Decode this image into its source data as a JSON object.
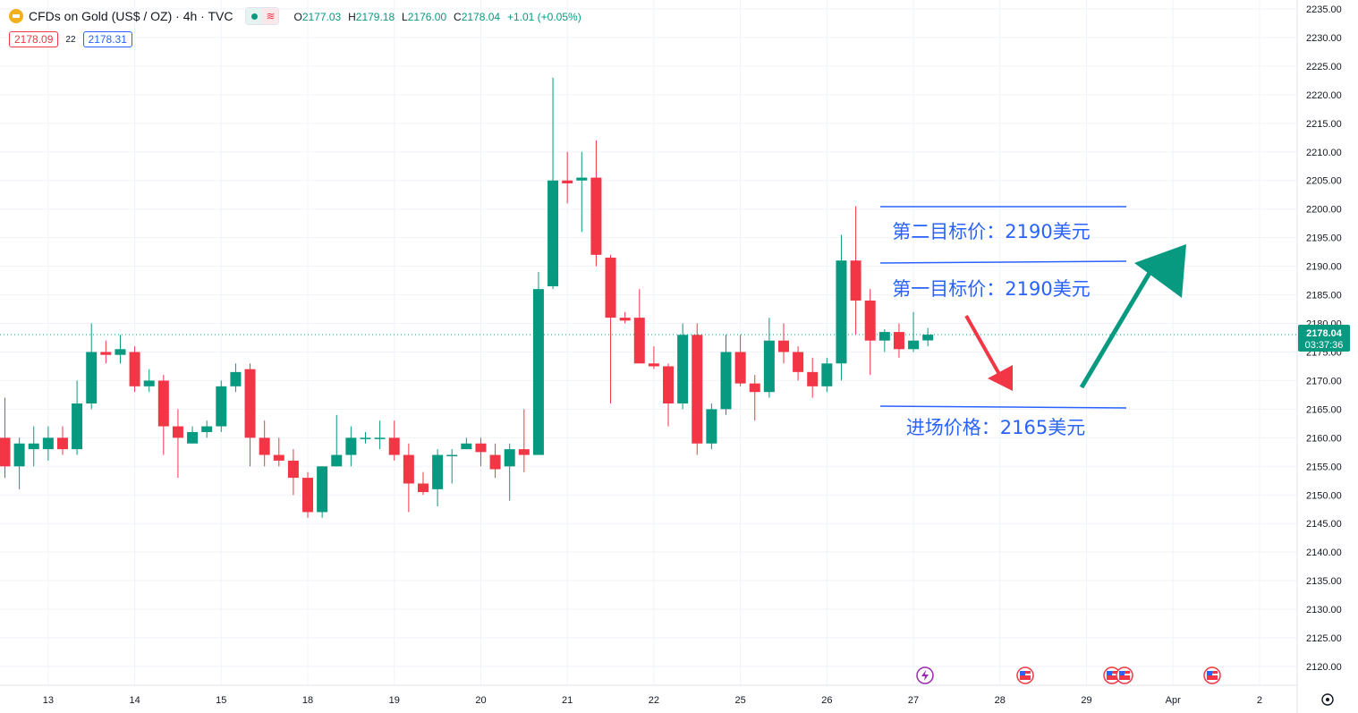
{
  "header": {
    "symbol_title": "CFDs on Gold (US$ / OZ) · 4h · TVC",
    "ohlc": {
      "o_label": "O",
      "o_value": "2177.03",
      "h_label": "H",
      "h_value": "2179.18",
      "l_label": "L",
      "l_value": "2176.00",
      "c_label": "C",
      "c_value": "2178.04",
      "change": "+1.01 (+0.05%)"
    },
    "bid": "2178.09",
    "spread": "22",
    "ask": "2178.31"
  },
  "price_label": {
    "price": "2178.04",
    "countdown": "03:37:36"
  },
  "annotations": {
    "target2": "第二目标价：2190美元",
    "target1": "第一目标价：2190美元",
    "entry": "进场价格：2165美元"
  },
  "colors": {
    "up": "#089981",
    "down": "#f23645",
    "annotation_text": "#2962ff",
    "line": "#2962ff"
  },
  "icons": {
    "symbol": "gold-coin-icon",
    "settings": "gear-icon",
    "event_lightning": "lightning-icon",
    "event_flag": "us-flag-icon"
  },
  "chart_data": {
    "type": "candlestick",
    "title": "CFDs on Gold (US$ / OZ) · 4h · TVC",
    "ylim": [
      2117,
      2237
    ],
    "y_ticks": [
      2120,
      2125,
      2130,
      2135,
      2140,
      2145,
      2150,
      2155,
      2160,
      2165,
      2170,
      2175,
      2180,
      2185,
      2190,
      2195,
      2200,
      2205,
      2210,
      2215,
      2220,
      2225,
      2230,
      2235
    ],
    "x_ticks": [
      {
        "label": "13",
        "bar": 3
      },
      {
        "label": "14",
        "bar": 9
      },
      {
        "label": "15",
        "bar": 15
      },
      {
        "label": "18",
        "bar": 21
      },
      {
        "label": "19",
        "bar": 27
      },
      {
        "label": "20",
        "bar": 33
      },
      {
        "label": "21",
        "bar": 39
      },
      {
        "label": "22",
        "bar": 45
      },
      {
        "label": "25",
        "bar": 51
      },
      {
        "label": "26",
        "bar": 57
      },
      {
        "label": "27",
        "bar": 63
      },
      {
        "label": "28",
        "bar": 69
      },
      {
        "label": "29",
        "bar": 75
      },
      {
        "label": "Apr",
        "bar": 81
      },
      {
        "label": "2",
        "bar": 87
      }
    ],
    "last_price": 2178.04,
    "candles": [
      {
        "o": 2160,
        "h": 2167,
        "l": 2153,
        "c": 2155
      },
      {
        "o": 2155,
        "h": 2160,
        "l": 2151,
        "c": 2159
      },
      {
        "o": 2158,
        "h": 2162,
        "l": 2155,
        "c": 2159
      },
      {
        "o": 2158,
        "h": 2162,
        "l": 2156,
        "c": 2160
      },
      {
        "o": 2160,
        "h": 2162,
        "l": 2157,
        "c": 2158
      },
      {
        "o": 2158,
        "h": 2170,
        "l": 2157,
        "c": 2166
      },
      {
        "o": 2166,
        "h": 2180,
        "l": 2165,
        "c": 2175
      },
      {
        "o": 2175,
        "h": 2177,
        "l": 2173,
        "c": 2174.5
      },
      {
        "o": 2174.5,
        "h": 2178,
        "l": 2173,
        "c": 2175.5
      },
      {
        "o": 2175,
        "h": 2176,
        "l": 2168,
        "c": 2169
      },
      {
        "o": 2169,
        "h": 2172,
        "l": 2168,
        "c": 2170
      },
      {
        "o": 2170,
        "h": 2171,
        "l": 2157,
        "c": 2162
      },
      {
        "o": 2162,
        "h": 2165,
        "l": 2153,
        "c": 2160
      },
      {
        "o": 2159,
        "h": 2162,
        "l": 2159,
        "c": 2161
      },
      {
        "o": 2161,
        "h": 2163,
        "l": 2160,
        "c": 2162
      },
      {
        "o": 2162,
        "h": 2170,
        "l": 2161,
        "c": 2169
      },
      {
        "o": 2169,
        "h": 2173,
        "l": 2168,
        "c": 2171.5
      },
      {
        "o": 2172,
        "h": 2173,
        "l": 2155,
        "c": 2160
      },
      {
        "o": 2160,
        "h": 2163,
        "l": 2155,
        "c": 2157
      },
      {
        "o": 2157,
        "h": 2160,
        "l": 2155,
        "c": 2156
      },
      {
        "o": 2156,
        "h": 2158,
        "l": 2150,
        "c": 2153
      },
      {
        "o": 2153,
        "h": 2154,
        "l": 2146,
        "c": 2147
      },
      {
        "o": 2147,
        "h": 2155,
        "l": 2146,
        "c": 2155
      },
      {
        "o": 2155,
        "h": 2164,
        "l": 2155,
        "c": 2157
      },
      {
        "o": 2157,
        "h": 2162,
        "l": 2155,
        "c": 2160
      },
      {
        "o": 2160,
        "h": 2161,
        "l": 2159,
        "c": 2160
      },
      {
        "o": 2160,
        "h": 2163,
        "l": 2158,
        "c": 2160
      },
      {
        "o": 2160,
        "h": 2163,
        "l": 2156,
        "c": 2157
      },
      {
        "o": 2157,
        "h": 2159,
        "l": 2147,
        "c": 2152
      },
      {
        "o": 2152,
        "h": 2154,
        "l": 2150,
        "c": 2150.5
      },
      {
        "o": 2151,
        "h": 2158,
        "l": 2148,
        "c": 2157
      },
      {
        "o": 2157,
        "h": 2158,
        "l": 2152,
        "c": 2157
      },
      {
        "o": 2158,
        "h": 2160,
        "l": 2158,
        "c": 2159
      },
      {
        "o": 2159,
        "h": 2160,
        "l": 2155,
        "c": 2157.5
      },
      {
        "o": 2157,
        "h": 2159,
        "l": 2153,
        "c": 2154.5
      },
      {
        "o": 2155,
        "h": 2159,
        "l": 2149,
        "c": 2158
      },
      {
        "o": 2158,
        "h": 2165,
        "l": 2154,
        "c": 2157
      },
      {
        "o": 2157,
        "h": 2189,
        "l": 2157,
        "c": 2186
      },
      {
        "o": 2186.5,
        "h": 2223,
        "l": 2186,
        "c": 2205
      },
      {
        "o": 2205,
        "h": 2210,
        "l": 2201,
        "c": 2204.5
      },
      {
        "o": 2205,
        "h": 2210,
        "l": 2196,
        "c": 2205.5
      },
      {
        "o": 2205.5,
        "h": 2212,
        "l": 2190,
        "c": 2192
      },
      {
        "o": 2191.5,
        "h": 2192,
        "l": 2166,
        "c": 2181
      },
      {
        "o": 2181,
        "h": 2182,
        "l": 2180,
        "c": 2180.5
      },
      {
        "o": 2181,
        "h": 2186,
        "l": 2173,
        "c": 2173
      },
      {
        "o": 2173,
        "h": 2176,
        "l": 2172,
        "c": 2172.5
      },
      {
        "o": 2172.5,
        "h": 2173,
        "l": 2162,
        "c": 2166
      },
      {
        "o": 2166,
        "h": 2180,
        "l": 2165,
        "c": 2178
      },
      {
        "o": 2178,
        "h": 2180,
        "l": 2157,
        "c": 2159
      },
      {
        "o": 2159,
        "h": 2166,
        "l": 2158,
        "c": 2165
      },
      {
        "o": 2165,
        "h": 2178,
        "l": 2164,
        "c": 2175
      },
      {
        "o": 2175,
        "h": 2178,
        "l": 2169,
        "c": 2169.5
      },
      {
        "o": 2169.5,
        "h": 2171,
        "l": 2163,
        "c": 2168
      },
      {
        "o": 2168,
        "h": 2181,
        "l": 2167,
        "c": 2177
      },
      {
        "o": 2177,
        "h": 2180,
        "l": 2173,
        "c": 2175
      },
      {
        "o": 2175,
        "h": 2176,
        "l": 2170,
        "c": 2171.5
      },
      {
        "o": 2171.5,
        "h": 2174,
        "l": 2167,
        "c": 2169
      },
      {
        "o": 2169,
        "h": 2174,
        "l": 2168,
        "c": 2173
      },
      {
        "o": 2173,
        "h": 2195.5,
        "l": 2170,
        "c": 2191
      },
      {
        "o": 2191,
        "h": 2200.5,
        "l": 2178,
        "c": 2184
      },
      {
        "o": 2184,
        "h": 2186,
        "l": 2171,
        "c": 2177
      },
      {
        "o": 2177,
        "h": 2179,
        "l": 2175,
        "c": 2178.5
      },
      {
        "o": 2178.5,
        "h": 2180,
        "l": 2174,
        "c": 2175.5
      },
      {
        "o": 2175.5,
        "h": 2182,
        "l": 2175,
        "c": 2177
      },
      {
        "o": 2177.03,
        "h": 2179.18,
        "l": 2176.0,
        "c": 2178.04
      }
    ]
  }
}
